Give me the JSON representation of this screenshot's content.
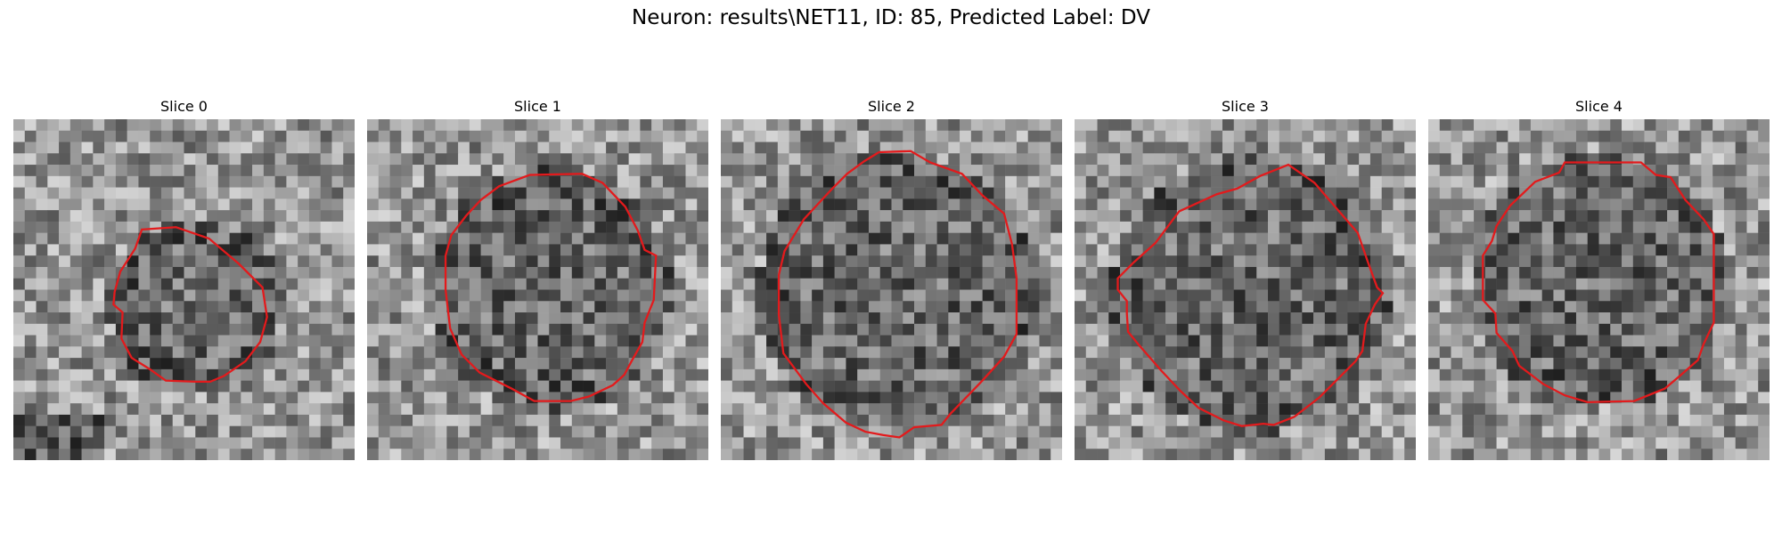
{
  "figure": {
    "suptitle": "Neuron: results\\NET11, ID: 85, Predicted Label: DV"
  },
  "panels": [
    {
      "title": "Slice 0",
      "contour_color": "#e31a1c"
    },
    {
      "title": "Slice 1",
      "contour_color": "#e31a1c"
    },
    {
      "title": "Slice 2",
      "contour_color": "#e31a1c"
    },
    {
      "title": "Slice 3",
      "contour_color": "#e31a1c"
    },
    {
      "title": "Slice 4",
      "contour_color": "#e31a1c"
    }
  ]
}
